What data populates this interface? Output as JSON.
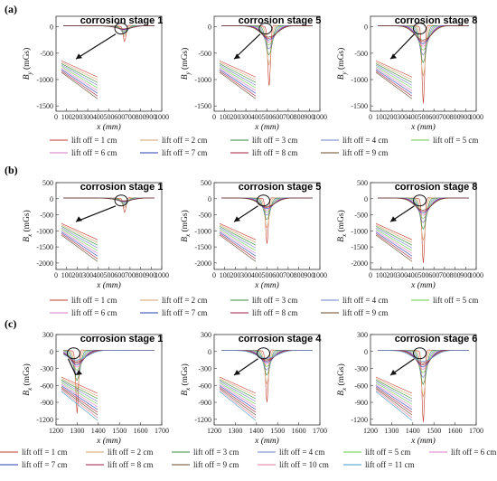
{
  "colors": [
    "#c0392b",
    "#d4a06a",
    "#3a8a3a",
    "#6d7fc8",
    "#67c94a",
    "#d97ac9",
    "#2a3fb5",
    "#a31c3c",
    "#6a4a2a",
    "#e07b9a",
    "#4a9ad0"
  ],
  "chart_data": [
    {
      "type": "line",
      "panel": "(a)",
      "xlabel": "x (mm)",
      "ylabel": "B_y (mGs)",
      "ylabel_main": "B",
      "ylabel_sub": "y",
      "series_names": [
        "lift off = 1 cm",
        "lift off = 2 cm",
        "lift off = 3 cm",
        "lift off = 4 cm",
        "lift off = 5 cm",
        "lift off = 6 cm",
        "lift off = 7 cm",
        "lift off = 8 cm",
        "lift off = 9 cm"
      ],
      "subplots": [
        {
          "title": "corrosion stage 1",
          "xlim": [
            0,
            1000
          ],
          "ylim": [
            -1600,
            200
          ],
          "xticks": [
            0,
            100,
            200,
            300,
            400,
            500,
            600,
            700,
            800,
            900,
            1000
          ],
          "yticks": [
            0,
            -500,
            -1000,
            -1500
          ],
          "dip_center": 650,
          "dip_depth": 300
        },
        {
          "title": "corrosion stage 5",
          "xlim": [
            0,
            1000
          ],
          "ylim": [
            -1600,
            200
          ],
          "xticks": [
            0,
            100,
            200,
            300,
            400,
            500,
            600,
            700,
            800,
            900,
            1000
          ],
          "yticks": [
            0,
            -500,
            -1000,
            -1500
          ],
          "dip_center": 520,
          "dip_depth": 1150
        },
        {
          "title": "corrosion stage 8",
          "xlim": [
            0,
            1000
          ],
          "ylim": [
            -1600,
            200
          ],
          "xticks": [
            0,
            100,
            200,
            300,
            400,
            500,
            600,
            700,
            800,
            900,
            1000
          ],
          "yticks": [
            0,
            -500,
            -1000,
            -1500
          ],
          "dip_center": 500,
          "dip_depth": 1450
        }
      ]
    },
    {
      "type": "line",
      "panel": "(b)",
      "xlabel": "x (mm)",
      "ylabel": "B_x (mGs)",
      "ylabel_main": "B",
      "ylabel_sub": "x",
      "series_names": [
        "lift off = 1 cm",
        "lift off = 2 cm",
        "lift off = 3 cm",
        "lift off = 4 cm",
        "lift off = 5 cm",
        "lift off = 6 cm",
        "lift off = 7 cm",
        "lift off = 8 cm",
        "lift off = 9 cm"
      ],
      "subplots": [
        {
          "title": "corrosion stage 1",
          "xlim": [
            0,
            1000
          ],
          "ylim": [
            -2200,
            500
          ],
          "xticks": [
            0,
            100,
            200,
            300,
            400,
            500,
            600,
            700,
            800,
            900,
            1000
          ],
          "yticks": [
            500,
            0,
            -500,
            -1000,
            -1500,
            -2000
          ],
          "dip_center": 650,
          "dip_depth": 450
        },
        {
          "title": "corrosion stage 5",
          "xlim": [
            0,
            1000
          ],
          "ylim": [
            -2200,
            500
          ],
          "xticks": [
            0,
            100,
            200,
            300,
            400,
            500,
            600,
            700,
            800,
            900,
            1000
          ],
          "yticks": [
            500,
            0,
            -500,
            -1000,
            -1500,
            -2000
          ],
          "dip_center": 500,
          "dip_depth": 1400
        },
        {
          "title": "corrosion stage 8",
          "xlim": [
            0,
            1000
          ],
          "ylim": [
            -2200,
            500
          ],
          "xticks": [
            0,
            100,
            200,
            300,
            400,
            500,
            600,
            700,
            800,
            900,
            1000
          ],
          "yticks": [
            500,
            0,
            -500,
            -1000,
            -1500,
            -2000
          ],
          "dip_center": 500,
          "dip_depth": 2000
        }
      ]
    },
    {
      "type": "line",
      "panel": "(c)",
      "xlabel": "x (mm)",
      "ylabel": "B_x (mGs)",
      "ylabel_main": "B",
      "ylabel_sub": "x",
      "series_names": [
        "lift off = 1 cm",
        "lift off = 2 cm",
        "lift off = 3 cm",
        "lift off = 4 cm",
        "lift off = 5 cm",
        "lift off = 6 cm",
        "lift off = 7 cm",
        "lift off = 8 cm",
        "lift off = 9 cm",
        "lift off = 10 cm",
        "lift off = 11 cm"
      ],
      "subplots": [
        {
          "title": "corrosion stage 1",
          "xlim": [
            1200,
            1700
          ],
          "ylim": [
            -1300,
            300
          ],
          "xticks": [
            1200,
            1300,
            1400,
            1500,
            1600,
            1700
          ],
          "yticks": [
            300,
            0,
            -300,
            -600,
            -900,
            -1200
          ],
          "dip_center": 1300,
          "dip_depth": 1100
        },
        {
          "title": "corrosion stage 4",
          "xlim": [
            1200,
            1700
          ],
          "ylim": [
            -1300,
            300
          ],
          "xticks": [
            1200,
            1300,
            1400,
            1500,
            1600,
            1700
          ],
          "yticks": [
            300,
            0,
            -300,
            -600,
            -900,
            -1200
          ],
          "dip_center": 1450,
          "dip_depth": 900
        },
        {
          "title": "corrosion stage 6",
          "xlim": [
            1200,
            1700
          ],
          "ylim": [
            -1300,
            300
          ],
          "xticks": [
            1200,
            1300,
            1400,
            1500,
            1600,
            1700
          ],
          "yticks": [
            300,
            0,
            -300,
            -600,
            -900,
            -1200
          ],
          "dip_center": 1450,
          "dip_depth": 1250
        }
      ]
    }
  ]
}
